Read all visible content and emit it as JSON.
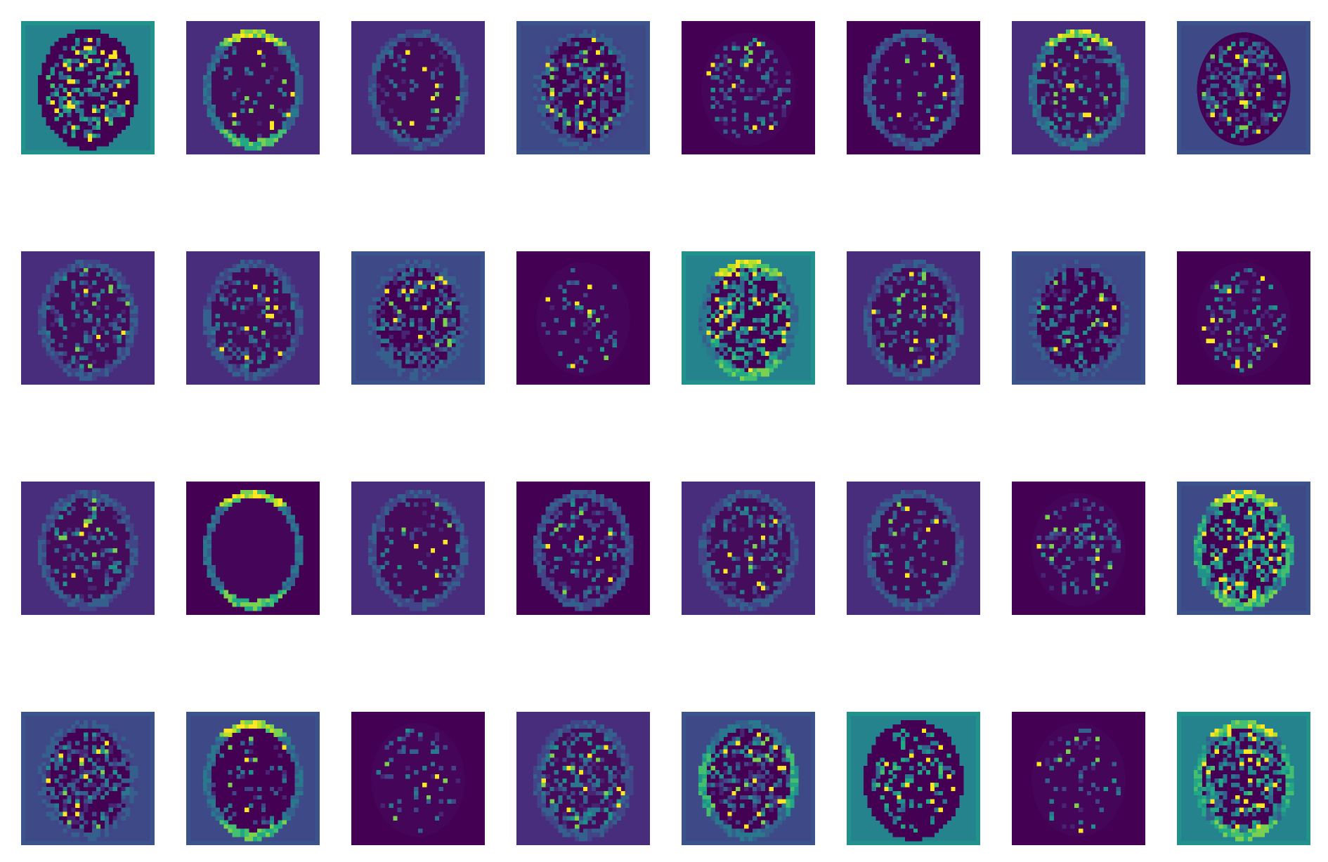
{
  "figure": {
    "layout": {
      "rows": 4,
      "cols": 8
    },
    "colormap": "viridis",
    "colors": {
      "dark": "#440154",
      "low": "#472d7b",
      "mid": "#3b528b",
      "teal": "#21918c",
      "green": "#5ec962",
      "yellow": "#fde725"
    },
    "feature_maps": [
      {
        "row": 0,
        "col": 0,
        "background": "teal",
        "ring": "dark",
        "ring_pos": "none",
        "speckle": "dense"
      },
      {
        "row": 0,
        "col": 1,
        "background": "low",
        "ring": "bright",
        "ring_pos": "top-bottom",
        "speckle": "sparse"
      },
      {
        "row": 0,
        "col": 2,
        "background": "low",
        "ring": "faint",
        "ring_pos": "none",
        "speckle": "sparse"
      },
      {
        "row": 0,
        "col": 3,
        "background": "mid",
        "ring": "faint",
        "ring_pos": "none",
        "speckle": "dense"
      },
      {
        "row": 0,
        "col": 4,
        "background": "dark",
        "ring": "none",
        "ring_pos": "none",
        "speckle": "medium"
      },
      {
        "row": 0,
        "col": 5,
        "background": "dark",
        "ring": "faint",
        "ring_pos": "top",
        "speckle": "sparse"
      },
      {
        "row": 0,
        "col": 6,
        "background": "low",
        "ring": "bright",
        "ring_pos": "top",
        "speckle": "medium"
      },
      {
        "row": 0,
        "col": 7,
        "background": "mid",
        "ring": "none",
        "ring_pos": "none",
        "speckle": "dense"
      },
      {
        "row": 1,
        "col": 0,
        "background": "low",
        "ring": "faint",
        "ring_pos": "none",
        "speckle": "medium"
      },
      {
        "row": 1,
        "col": 1,
        "background": "low",
        "ring": "faint",
        "ring_pos": "none",
        "speckle": "medium"
      },
      {
        "row": 1,
        "col": 2,
        "background": "mid",
        "ring": "faint",
        "ring_pos": "none",
        "speckle": "dense"
      },
      {
        "row": 1,
        "col": 3,
        "background": "dark",
        "ring": "none",
        "ring_pos": "none",
        "speckle": "sparse"
      },
      {
        "row": 1,
        "col": 4,
        "background": "teal",
        "ring": "bright",
        "ring_pos": "top-bottom",
        "speckle": "dense"
      },
      {
        "row": 1,
        "col": 5,
        "background": "low",
        "ring": "faint",
        "ring_pos": "none",
        "speckle": "medium"
      },
      {
        "row": 1,
        "col": 6,
        "background": "mid",
        "ring": "faint",
        "ring_pos": "none",
        "speckle": "medium"
      },
      {
        "row": 1,
        "col": 7,
        "background": "dark",
        "ring": "none",
        "ring_pos": "none",
        "speckle": "medium"
      },
      {
        "row": 2,
        "col": 0,
        "background": "low",
        "ring": "faint",
        "ring_pos": "none",
        "speckle": "medium"
      },
      {
        "row": 2,
        "col": 1,
        "background": "dark",
        "ring": "bright",
        "ring_pos": "top-bottom",
        "speckle": "none"
      },
      {
        "row": 2,
        "col": 2,
        "background": "low",
        "ring": "faint",
        "ring_pos": "none",
        "speckle": "sparse"
      },
      {
        "row": 2,
        "col": 3,
        "background": "dark",
        "ring": "faint",
        "ring_pos": "none",
        "speckle": "medium"
      },
      {
        "row": 2,
        "col": 4,
        "background": "low",
        "ring": "faint",
        "ring_pos": "none",
        "speckle": "medium"
      },
      {
        "row": 2,
        "col": 5,
        "background": "low",
        "ring": "faint",
        "ring_pos": "none",
        "speckle": "sparse"
      },
      {
        "row": 2,
        "col": 6,
        "background": "dark",
        "ring": "none",
        "ring_pos": "none",
        "speckle": "medium"
      },
      {
        "row": 2,
        "col": 7,
        "background": "mid",
        "ring": "bright",
        "ring_pos": "all",
        "speckle": "dense"
      },
      {
        "row": 3,
        "col": 0,
        "background": "mid",
        "ring": "faint",
        "ring_pos": "none",
        "speckle": "dense"
      },
      {
        "row": 3,
        "col": 1,
        "background": "mid",
        "ring": "bright",
        "ring_pos": "top-bottom",
        "speckle": "sparse"
      },
      {
        "row": 3,
        "col": 2,
        "background": "dark",
        "ring": "none",
        "ring_pos": "none",
        "speckle": "sparse"
      },
      {
        "row": 3,
        "col": 3,
        "background": "low",
        "ring": "faint",
        "ring_pos": "none",
        "speckle": "dense"
      },
      {
        "row": 3,
        "col": 4,
        "background": "mid",
        "ring": "bright",
        "ring_pos": "sides",
        "speckle": "dense"
      },
      {
        "row": 3,
        "col": 5,
        "background": "teal",
        "ring": "dark",
        "ring_pos": "none",
        "speckle": "medium"
      },
      {
        "row": 3,
        "col": 6,
        "background": "dark",
        "ring": "none",
        "ring_pos": "none",
        "speckle": "sparse"
      },
      {
        "row": 3,
        "col": 7,
        "background": "teal",
        "ring": "bright",
        "ring_pos": "all",
        "speckle": "dense"
      }
    ]
  }
}
